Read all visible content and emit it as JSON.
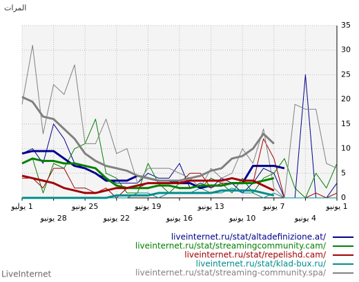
{
  "chart_data": {
    "type": "line",
    "y_label": "المرات",
    "footer": "LiveInternet",
    "categories": [
      "1 يوليو",
      null,
      null,
      "28 يونيو",
      null,
      null,
      "25 يونيو",
      null,
      null,
      "22 يونيو",
      null,
      null,
      "19 يونيو",
      null,
      null,
      "16 يونيو",
      null,
      null,
      "13 يونيو",
      null,
      null,
      "10 يونيو",
      null,
      null,
      "7 يونيو",
      null,
      null,
      "4 يونيو",
      null,
      null,
      "1 يونيو"
    ],
    "ylim": [
      0,
      35
    ],
    "yticks": [
      0,
      5,
      10,
      15,
      20,
      25,
      30,
      35
    ],
    "grid": true,
    "legend": "bottom-right",
    "series": [
      {
        "name": "liveinternet.ru/stat/altadefinizione.at/",
        "color": "#00008b",
        "values": [
          9,
          10,
          7,
          15,
          12,
          7,
          6,
          5,
          4,
          3,
          3,
          3,
          5,
          4,
          4,
          7,
          2,
          3,
          2,
          4,
          3,
          1,
          3,
          6,
          5,
          0,
          0,
          25,
          0,
          0,
          3
        ],
        "trend": [
          9,
          9.5,
          9.5,
          9.5,
          8,
          6.5,
          6,
          5,
          3.5,
          3.5,
          3.5,
          4.5,
          4,
          3.5,
          3.5,
          3,
          3,
          2,
          2.5,
          2.5,
          3,
          3,
          6.5,
          6.5,
          6.5,
          6,
          null,
          null,
          null,
          null,
          null
        ]
      },
      {
        "name": "liveinternet.ru/stat/streamingcommunity.cam/",
        "color": "#008000",
        "values": [
          7,
          8,
          1,
          7,
          6,
          10,
          11,
          16,
          5,
          4,
          1,
          1,
          7,
          3,
          1,
          3,
          3,
          2,
          4,
          3,
          1,
          4,
          1,
          4,
          5,
          8,
          2,
          0,
          5,
          2,
          7
        ],
        "trend": [
          7,
          8,
          7.5,
          7.5,
          7,
          7,
          6.5,
          6,
          4,
          2.5,
          2,
          2,
          2,
          2.5,
          2.5,
          2,
          2,
          2.5,
          2.5,
          2.5,
          3,
          3,
          3,
          3.5,
          4,
          null,
          null,
          null,
          null,
          null,
          null
        ]
      },
      {
        "name": "liveinternet.ru/stat/repelishd.cam/",
        "color": "#a00000",
        "values": [
          4,
          4,
          2,
          6,
          6,
          2,
          2,
          1,
          2,
          0,
          2,
          2,
          3,
          3,
          3,
          3,
          5,
          5,
          2,
          3,
          3,
          3,
          3,
          12,
          8,
          0,
          0,
          0,
          1,
          0,
          1
        ],
        "trend": [
          4.5,
          4,
          3.5,
          3,
          2,
          1.5,
          1,
          1,
          1.5,
          2,
          2,
          2.5,
          3,
          3,
          3,
          3,
          3.5,
          3.5,
          3.5,
          3.5,
          4,
          3.5,
          3.5,
          2.5,
          1.5,
          null,
          null,
          null,
          null,
          null,
          null
        ]
      },
      {
        "name": "liveinternet.ru/stat/klad-bux.ru/",
        "color": "#008b8b",
        "values": [
          0,
          0,
          0,
          0,
          0,
          0,
          0,
          0,
          0,
          0,
          0,
          1,
          1,
          0,
          1,
          1,
          1,
          2,
          1,
          1,
          2,
          1,
          1,
          0,
          1,
          0,
          0,
          0,
          0,
          0,
          0
        ],
        "trend": [
          0,
          0,
          0,
          0,
          0,
          0,
          0,
          0,
          0,
          0.5,
          0.5,
          0.5,
          0.5,
          1,
          1,
          1,
          1,
          1,
          1,
          1.5,
          1.5,
          1.5,
          1.5,
          1,
          0.5,
          null,
          null,
          null,
          null,
          null,
          null
        ]
      },
      {
        "name": "liveinternet.ru/stat/streaming-community.spa/",
        "color": "#808080",
        "values": [
          19,
          31,
          13,
          23,
          21,
          27,
          11,
          11,
          16,
          9,
          10,
          3,
          6,
          6,
          6,
          5,
          4,
          2,
          6,
          4,
          5,
          10,
          7,
          14,
          2,
          0,
          19,
          18,
          18,
          7,
          6
        ],
        "trend": [
          20.5,
          19.5,
          16.5,
          16,
          14,
          12,
          9,
          7.5,
          6.5,
          6,
          5.5,
          4.5,
          4,
          3.5,
          3.5,
          3.5,
          4,
          4.5,
          5.5,
          6,
          8,
          8.5,
          10,
          13,
          11,
          null,
          null,
          null,
          null,
          null,
          null
        ]
      }
    ]
  }
}
